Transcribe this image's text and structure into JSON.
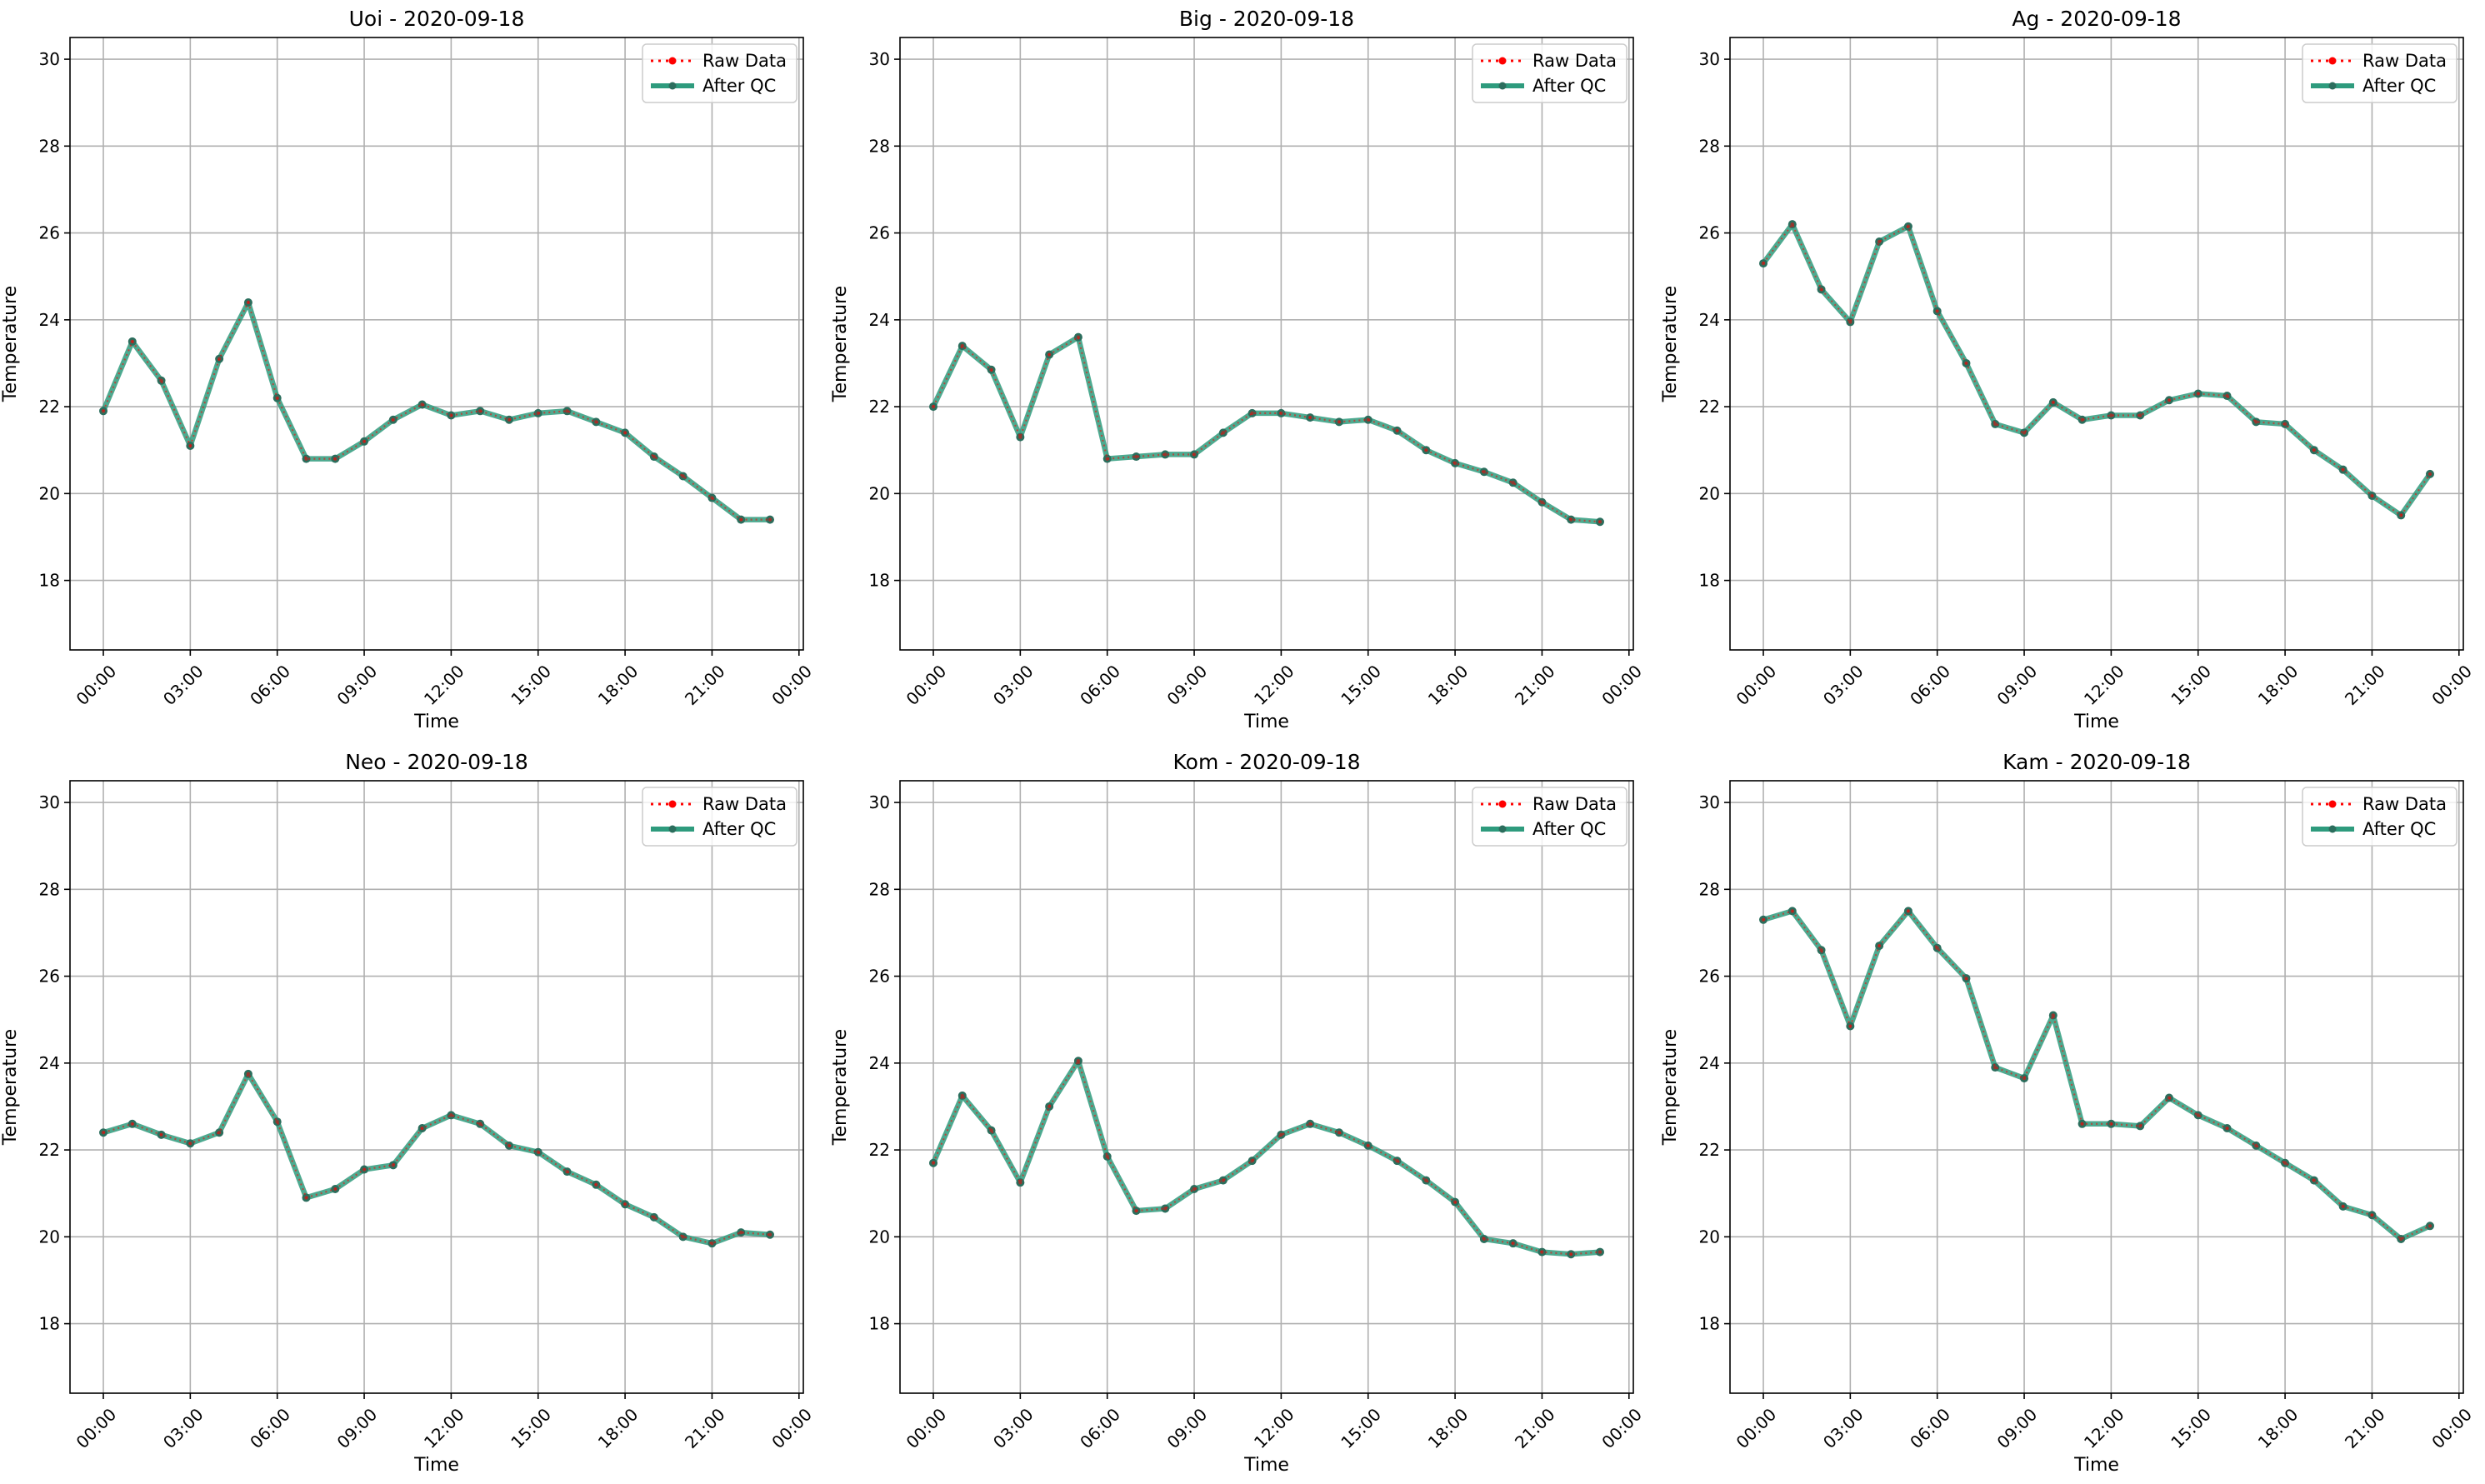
{
  "figure": {
    "background": "#ffffff",
    "raw_color": "#ff0000",
    "qc_color": "#2e9b7d"
  },
  "chart_data": [
    {
      "type": "line",
      "title": "Uoi - 2020-09-18",
      "xlabel": "Time",
      "ylabel": "Temperature",
      "x_ticks": [
        "00:00",
        "03:00",
        "06:00",
        "09:00",
        "12:00",
        "15:00",
        "18:00",
        "21:00",
        "00:00"
      ],
      "y_ticks": [
        "18",
        "20",
        "22",
        "24",
        "26",
        "28",
        "30"
      ],
      "xlim_hours": [
        -1.15,
        24.15
      ],
      "ylim": [
        16.4,
        30.5
      ],
      "grid": true,
      "legend_position": "top-right",
      "series": [
        {
          "name": "Raw Data",
          "style": "dotted",
          "color": "#ff0000",
          "values": [
            21.9,
            23.5,
            22.6,
            21.1,
            23.1,
            24.4,
            22.2,
            20.8,
            20.8,
            21.2,
            21.7,
            22.05,
            21.8,
            21.9,
            21.7,
            21.85,
            21.9,
            21.65,
            21.4,
            20.85,
            20.4,
            19.9,
            19.4,
            19.4
          ]
        },
        {
          "name": "After QC",
          "style": "solid",
          "color": "#2e9b7d",
          "values": [
            21.9,
            23.5,
            22.6,
            21.1,
            23.1,
            24.4,
            22.2,
            20.8,
            20.8,
            21.2,
            21.7,
            22.05,
            21.8,
            21.9,
            21.7,
            21.85,
            21.9,
            21.65,
            21.4,
            20.85,
            20.4,
            19.9,
            19.4,
            19.4
          ]
        }
      ]
    },
    {
      "type": "line",
      "title": "Big - 2020-09-18",
      "xlabel": "Time",
      "ylabel": "Temperature",
      "x_ticks": [
        "00:00",
        "03:00",
        "06:00",
        "09:00",
        "12:00",
        "15:00",
        "18:00",
        "21:00",
        "00:00"
      ],
      "y_ticks": [
        "18",
        "20",
        "22",
        "24",
        "26",
        "28",
        "30"
      ],
      "xlim_hours": [
        -1.15,
        24.15
      ],
      "ylim": [
        16.4,
        30.5
      ],
      "grid": true,
      "legend_position": "top-right",
      "series": [
        {
          "name": "Raw Data",
          "style": "dotted",
          "color": "#ff0000",
          "values": [
            22.0,
            23.4,
            22.85,
            21.3,
            23.2,
            23.6,
            20.8,
            20.85,
            20.9,
            20.9,
            21.4,
            21.85,
            21.85,
            21.75,
            21.65,
            21.7,
            21.45,
            21.0,
            20.7,
            20.5,
            20.25,
            19.8,
            19.4,
            19.35
          ]
        },
        {
          "name": "After QC",
          "style": "solid",
          "color": "#2e9b7d",
          "values": [
            22.0,
            23.4,
            22.85,
            21.3,
            23.2,
            23.6,
            20.8,
            20.85,
            20.9,
            20.9,
            21.4,
            21.85,
            21.85,
            21.75,
            21.65,
            21.7,
            21.45,
            21.0,
            20.7,
            20.5,
            20.25,
            19.8,
            19.4,
            19.35
          ]
        }
      ]
    },
    {
      "type": "line",
      "title": "Ag - 2020-09-18",
      "xlabel": "Time",
      "ylabel": "Temperature",
      "x_ticks": [
        "00:00",
        "03:00",
        "06:00",
        "09:00",
        "12:00",
        "15:00",
        "18:00",
        "21:00",
        "00:00"
      ],
      "y_ticks": [
        "18",
        "20",
        "22",
        "24",
        "26",
        "28",
        "30"
      ],
      "xlim_hours": [
        -1.15,
        24.15
      ],
      "ylim": [
        16.4,
        30.5
      ],
      "grid": true,
      "legend_position": "top-right",
      "series": [
        {
          "name": "Raw Data",
          "style": "dotted",
          "color": "#ff0000",
          "values": [
            25.3,
            26.2,
            24.7,
            23.95,
            25.8,
            26.15,
            24.2,
            23.0,
            21.6,
            21.4,
            22.1,
            21.7,
            21.8,
            21.8,
            22.15,
            22.3,
            22.25,
            21.65,
            21.6,
            21.0,
            20.55,
            19.95,
            19.5,
            20.45
          ]
        },
        {
          "name": "After QC",
          "style": "solid",
          "color": "#2e9b7d",
          "values": [
            25.3,
            26.2,
            24.7,
            23.95,
            25.8,
            26.15,
            24.2,
            23.0,
            21.6,
            21.4,
            22.1,
            21.7,
            21.8,
            21.8,
            22.15,
            22.3,
            22.25,
            21.65,
            21.6,
            21.0,
            20.55,
            19.95,
            19.5,
            20.45
          ]
        }
      ]
    },
    {
      "type": "line",
      "title": "Neo - 2020-09-18",
      "xlabel": "Time",
      "ylabel": "Temperature",
      "x_ticks": [
        "00:00",
        "03:00",
        "06:00",
        "09:00",
        "12:00",
        "15:00",
        "18:00",
        "21:00",
        "00:00"
      ],
      "y_ticks": [
        "18",
        "20",
        "22",
        "24",
        "26",
        "28",
        "30"
      ],
      "xlim_hours": [
        -1.15,
        24.15
      ],
      "ylim": [
        16.4,
        30.5
      ],
      "grid": true,
      "legend_position": "top-right",
      "series": [
        {
          "name": "Raw Data",
          "style": "dotted",
          "color": "#ff0000",
          "values": [
            22.4,
            22.6,
            22.35,
            22.15,
            22.4,
            23.75,
            22.65,
            20.9,
            21.1,
            21.55,
            21.65,
            22.5,
            22.8,
            22.6,
            22.1,
            21.95,
            21.5,
            21.2,
            20.75,
            20.45,
            20.0,
            19.85,
            20.1,
            20.05
          ]
        },
        {
          "name": "After QC",
          "style": "solid",
          "color": "#2e9b7d",
          "values": [
            22.4,
            22.6,
            22.35,
            22.15,
            22.4,
            23.75,
            22.65,
            20.9,
            21.1,
            21.55,
            21.65,
            22.5,
            22.8,
            22.6,
            22.1,
            21.95,
            21.5,
            21.2,
            20.75,
            20.45,
            20.0,
            19.85,
            20.1,
            20.05
          ]
        }
      ]
    },
    {
      "type": "line",
      "title": "Kom - 2020-09-18",
      "xlabel": "Time",
      "ylabel": "Temperature",
      "x_ticks": [
        "00:00",
        "03:00",
        "06:00",
        "09:00",
        "12:00",
        "15:00",
        "18:00",
        "21:00",
        "00:00"
      ],
      "y_ticks": [
        "18",
        "20",
        "22",
        "24",
        "26",
        "28",
        "30"
      ],
      "xlim_hours": [
        -1.15,
        24.15
      ],
      "ylim": [
        16.4,
        30.5
      ],
      "grid": true,
      "legend_position": "top-right",
      "series": [
        {
          "name": "Raw Data",
          "style": "dotted",
          "color": "#ff0000",
          "values": [
            21.7,
            23.25,
            22.45,
            21.25,
            23.0,
            24.05,
            21.85,
            20.6,
            20.65,
            21.1,
            21.3,
            21.75,
            22.35,
            22.6,
            22.4,
            22.1,
            21.75,
            21.3,
            20.8,
            19.95,
            19.85,
            19.65,
            19.6,
            19.65
          ]
        },
        {
          "name": "After QC",
          "style": "solid",
          "color": "#2e9b7d",
          "values": [
            21.7,
            23.25,
            22.45,
            21.25,
            23.0,
            24.05,
            21.85,
            20.6,
            20.65,
            21.1,
            21.3,
            21.75,
            22.35,
            22.6,
            22.4,
            22.1,
            21.75,
            21.3,
            20.8,
            19.95,
            19.85,
            19.65,
            19.6,
            19.65
          ]
        }
      ]
    },
    {
      "type": "line",
      "title": "Kam - 2020-09-18",
      "xlabel": "Time",
      "ylabel": "Temperature",
      "x_ticks": [
        "00:00",
        "03:00",
        "06:00",
        "09:00",
        "12:00",
        "15:00",
        "18:00",
        "21:00",
        "00:00"
      ],
      "y_ticks": [
        "18",
        "20",
        "22",
        "24",
        "26",
        "28",
        "30"
      ],
      "xlim_hours": [
        -1.15,
        24.15
      ],
      "ylim": [
        16.4,
        30.5
      ],
      "grid": true,
      "legend_position": "top-right",
      "series": [
        {
          "name": "Raw Data",
          "style": "dotted",
          "color": "#ff0000",
          "values": [
            27.3,
            27.5,
            26.6,
            24.85,
            26.7,
            27.5,
            26.65,
            25.95,
            23.9,
            23.65,
            25.1,
            22.6,
            22.6,
            22.55,
            23.2,
            22.8,
            22.5,
            22.1,
            21.7,
            21.3,
            20.7,
            20.5,
            19.95,
            20.25
          ]
        },
        {
          "name": "After QC",
          "style": "solid",
          "color": "#2e9b7d",
          "values": [
            27.3,
            27.5,
            26.6,
            24.85,
            26.7,
            27.5,
            26.65,
            25.95,
            23.9,
            23.65,
            25.1,
            22.6,
            22.6,
            22.55,
            23.2,
            22.8,
            22.5,
            22.1,
            21.7,
            21.3,
            20.7,
            20.5,
            19.95,
            20.25
          ]
        }
      ]
    }
  ]
}
